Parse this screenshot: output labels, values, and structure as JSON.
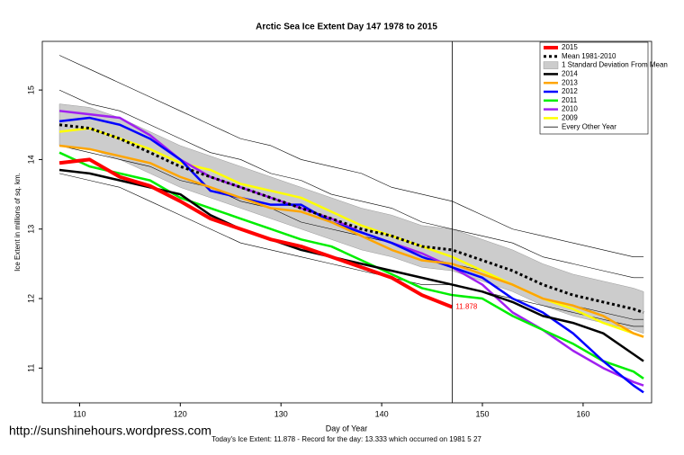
{
  "chart_data": {
    "type": "line",
    "title": "Arctic Sea Ice Extent Day 147 1978 to 2015",
    "x_label": "Day of Year",
    "y_label": "Ice Extent in millions of sq. km.",
    "footer": "Today's Ice Extent: 11.878  - Record for the day: 13.333 which occurred on 1981 5 27",
    "watermark": "http://sunshinehours.wordpress.com",
    "x": [
      108,
      111,
      114,
      117,
      120,
      123,
      126,
      129,
      132,
      135,
      138,
      141,
      144,
      147,
      150,
      153,
      156,
      159,
      162,
      165,
      166
    ],
    "xlim": [
      106.3,
      166.8
    ],
    "ylim": [
      10.5,
      15.7
    ],
    "xticks": [
      110,
      120,
      130,
      140,
      150,
      160
    ],
    "yticks": [
      11,
      12,
      13,
      14,
      15
    ],
    "vline": 147,
    "series": [
      {
        "name": "2015",
        "color": "#ff0000",
        "width": 4,
        "values": [
          13.95,
          14.0,
          13.75,
          13.62,
          13.4,
          13.15,
          13.0,
          12.85,
          12.75,
          12.6,
          12.45,
          12.3,
          12.05,
          11.878,
          null,
          null,
          null,
          null,
          null,
          null,
          null
        ]
      },
      {
        "name": "Mean 1981-2010",
        "color": "#000000",
        "width": 3,
        "dash": true,
        "values": [
          14.5,
          14.45,
          14.3,
          14.1,
          13.9,
          13.75,
          13.6,
          13.45,
          13.3,
          13.15,
          13.0,
          12.9,
          12.75,
          12.7,
          12.55,
          12.4,
          12.2,
          12.05,
          11.95,
          11.85,
          11.8
        ]
      },
      {
        "name": "2014",
        "color": "#000000",
        "width": 2.5,
        "values": [
          13.85,
          13.8,
          13.7,
          13.6,
          13.5,
          13.2,
          13.0,
          12.85,
          12.7,
          12.6,
          12.5,
          12.4,
          12.3,
          12.2,
          12.1,
          11.95,
          11.75,
          11.65,
          11.5,
          11.2,
          11.1
        ]
      },
      {
        "name": "2013",
        "color": "#ffa500",
        "width": 2.5,
        "values": [
          14.2,
          14.15,
          14.05,
          13.95,
          13.75,
          13.6,
          13.45,
          13.3,
          13.25,
          13.1,
          12.9,
          12.7,
          12.55,
          12.5,
          12.35,
          12.2,
          12.0,
          11.9,
          11.75,
          11.5,
          11.45
        ]
      },
      {
        "name": "2012",
        "color": "#0000ff",
        "width": 2.5,
        "values": [
          14.55,
          14.6,
          14.5,
          14.3,
          14.0,
          13.55,
          13.45,
          13.35,
          13.35,
          13.1,
          12.95,
          12.8,
          12.6,
          12.45,
          12.3,
          12.0,
          11.8,
          11.5,
          11.1,
          10.75,
          10.65
        ]
      },
      {
        "name": "2011",
        "color": "#00ee00",
        "width": 2.5,
        "values": [
          14.1,
          13.9,
          13.8,
          13.7,
          13.45,
          13.3,
          13.15,
          13.0,
          12.85,
          12.75,
          12.55,
          12.35,
          12.15,
          12.05,
          12.0,
          11.75,
          11.55,
          11.35,
          11.1,
          10.95,
          10.85
        ]
      },
      {
        "name": "2010",
        "color": "#a020f0",
        "width": 2.5,
        "values": [
          14.7,
          14.65,
          14.6,
          14.35,
          14.0,
          13.75,
          13.6,
          13.45,
          13.3,
          13.15,
          12.95,
          12.8,
          12.65,
          12.45,
          12.2,
          11.8,
          11.55,
          11.25,
          11.0,
          10.8,
          10.75
        ]
      },
      {
        "name": "2009",
        "color": "#ffff00",
        "width": 2.5,
        "values": [
          14.4,
          14.45,
          14.3,
          14.15,
          13.95,
          13.85,
          13.65,
          13.55,
          13.45,
          13.25,
          13.05,
          12.9,
          12.75,
          12.6,
          12.4,
          12.2,
          12.0,
          11.85,
          11.65,
          11.5,
          11.45
        ]
      }
    ],
    "band": {
      "name": "1 Standard Deviation From Mean",
      "color": "#cccccc",
      "lower": [
        14.2,
        14.15,
        14.0,
        13.8,
        13.6,
        13.45,
        13.3,
        13.15,
        13.0,
        12.85,
        12.7,
        12.6,
        12.45,
        12.4,
        12.25,
        12.1,
        11.9,
        11.75,
        11.65,
        11.55,
        11.5
      ],
      "upper": [
        14.8,
        14.75,
        14.6,
        14.4,
        14.2,
        14.05,
        13.9,
        13.75,
        13.6,
        13.45,
        13.3,
        13.2,
        13.05,
        13.0,
        12.85,
        12.7,
        12.5,
        12.35,
        12.25,
        12.15,
        12.1
      ]
    },
    "other_years": {
      "name": "Every Other Year",
      "color": "#000000",
      "lines": [
        [
          15.5,
          15.3,
          15.1,
          14.9,
          14.7,
          14.5,
          14.3,
          14.2,
          14.0,
          13.9,
          13.8,
          13.6,
          13.5,
          13.4,
          13.2,
          13.0,
          12.9,
          12.8,
          12.7,
          12.6,
          12.6
        ],
        [
          15.0,
          14.8,
          14.7,
          14.5,
          14.3,
          14.1,
          14.0,
          13.8,
          13.7,
          13.5,
          13.4,
          13.3,
          13.1,
          13.0,
          12.9,
          12.8,
          12.6,
          12.5,
          12.4,
          12.3,
          12.3
        ],
        [
          14.2,
          14.1,
          14.0,
          13.9,
          13.7,
          13.6,
          13.4,
          13.3,
          13.1,
          13.0,
          12.9,
          12.8,
          12.6,
          12.5,
          12.4,
          12.2,
          12.0,
          11.9,
          11.8,
          11.7,
          11.7
        ],
        [
          13.8,
          13.7,
          13.6,
          13.4,
          13.2,
          13.0,
          12.8,
          12.7,
          12.6,
          12.5,
          12.4,
          12.3,
          12.2,
          12.2,
          12.1,
          12.0,
          11.9,
          11.8,
          11.7,
          11.6,
          11.6
        ]
      ]
    }
  }
}
